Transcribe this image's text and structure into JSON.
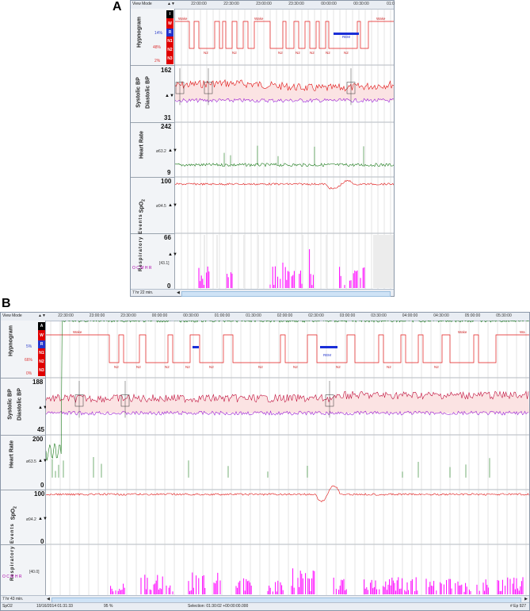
{
  "panels": [
    {
      "id": "A",
      "label": "A",
      "view_mode": "View Mode",
      "times": [
        "22:00:00",
        "22:30:00",
        "23:00:00",
        "23:30:00",
        "00:00:00",
        "00:30:00",
        "01:0"
      ],
      "stages": [
        "I",
        "W",
        "R",
        "N1",
        "N2",
        "N3"
      ],
      "hypnogram": {
        "title": "Hypnogram",
        "pct_r": "14%",
        "pct_n2": "48%",
        "pct_n3": "2%",
        "labels": [
          "Wake",
          "N2",
          "N2",
          "Wake",
          "N2",
          "N2",
          "N2",
          "N2",
          "N2",
          "REM",
          "Wake"
        ]
      },
      "bp": {
        "title1": "Systolic BP",
        "title2": "Diastolic BP",
        "max": "162",
        "min": "31"
      },
      "hr": {
        "title": "Heart Rate",
        "max": "242",
        "min": "9",
        "avg": "ø63.2"
      },
      "spo2": {
        "title": "SpO",
        "sub": "2",
        "max": "100",
        "avg": "ø94.5"
      },
      "resp": {
        "title": "Respiratory Events",
        "max": "66",
        "min": "0",
        "avg": "[43.1]",
        "legend": "O C M H R"
      },
      "status": {
        "zoom": "7 hr 22 min."
      }
    },
    {
      "id": "B",
      "label": "B",
      "view_mode": "View Mode",
      "times": [
        "22:30:00",
        "23:00:00",
        "23:30:00",
        "00:00:00",
        "00:30:00",
        "01:00:00",
        "01:30:00",
        "02:00:00",
        "02:30:00",
        "03:00:00",
        "03:30:00",
        "04:00:00",
        "04:30:00",
        "05:00:00",
        "05:30:00"
      ],
      "stages": [
        "A",
        "W",
        "R",
        "N1",
        "N2",
        "N3"
      ],
      "hypnogram": {
        "title": "Hypnogram",
        "pct_r": "5%",
        "pct_n2": "66%",
        "pct_n3": "0%",
        "labels": [
          "Wake",
          "N2",
          "N2",
          "N2",
          "N2",
          "N2",
          "N2",
          "N2",
          "REM",
          "N2",
          "N2",
          "N2",
          "Wake",
          "Wa"
        ]
      },
      "bp": {
        "title1": "Systolic BP",
        "title2": "Diastolic BP",
        "max": "188",
        "min": "45"
      },
      "hr": {
        "title": "Heart Rate",
        "max": "200",
        "min": "0",
        "avg": "ø63.5"
      },
      "spo2": {
        "title": "SpO",
        "sub": "2",
        "max": "100",
        "min": "0",
        "avg": "ø94.2"
      },
      "resp": {
        "title": "Respiratory Events",
        "avg": "[40.0]",
        "legend": "O C M H R"
      },
      "status": {
        "zoom": "7 hr 43 min.",
        "channel": "SpO2",
        "date": "10/16/2014  01:31:33",
        "value": "95 %",
        "selection": "Selection: 01:30:02  +00:00:00.000",
        "epoch": "# Ep 927"
      }
    }
  ],
  "colors": {
    "stage_red": "#e00000",
    "hypnogram": "#e31a1a",
    "rem": "#1a2fd8",
    "systolic": "#e01010",
    "systolic_b": "#c0103c",
    "diastolic": "#9b1fd6",
    "hr": "#1a7a1a",
    "spo2": "#e01414",
    "events": "#ff00ff",
    "grid": "#c8c8c8"
  }
}
